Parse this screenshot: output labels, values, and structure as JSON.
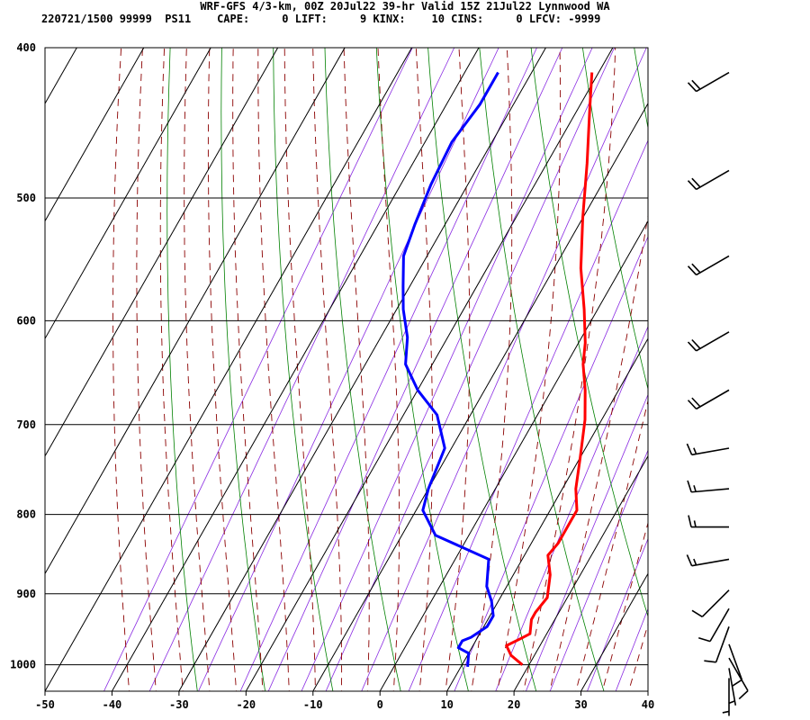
{
  "header": {
    "title": "WRF-GFS 4/3-km, 00Z 20Jul22 39-hr Valid 15Z 21Jul22 Lynnwood WA",
    "info": "220721/1500 99999  PS11    CAPE:     0 LIFT:     9 KINX:    10 CINS:     0 LFCV: -9999"
  },
  "colors": {
    "temperature": "#ff0000",
    "dewpoint": "#0000ff",
    "dry_adiabat": "#008000",
    "moist_adiabat": "#8b0000",
    "mixing_ratio": "#8a2be2",
    "grid": "#000000",
    "barb": "#000000"
  },
  "chart_data": {
    "type": "line",
    "chart_kind": "skew-T log-p sounding",
    "title": "WRF-GFS 4/3-km, 00Z 20Jul22 39-hr Valid 15Z 21Jul22 Lynnwood WA",
    "xlabel": "",
    "ylabel": "",
    "x_ticks": [
      -50,
      -40,
      -30,
      -20,
      -10,
      0,
      10,
      20,
      30,
      40
    ],
    "y_ticks": [
      400,
      500,
      600,
      700,
      800,
      900,
      1000
    ],
    "xlim": [
      -50,
      40
    ],
    "ylim": [
      1040,
      400
    ],
    "y_scale": "log",
    "grid": true,
    "series": [
      {
        "key": "temperature",
        "points": [
          [
            -21,
            415
          ],
          [
            -18,
            440
          ],
          [
            -14,
            475
          ],
          [
            -10,
            515
          ],
          [
            -6,
            555
          ],
          [
            -2,
            590
          ],
          [
            1,
            620
          ],
          [
            2.5,
            640
          ],
          [
            5,
            665
          ],
          [
            7.5,
            695
          ],
          [
            10,
            735
          ],
          [
            12,
            770
          ],
          [
            14,
            795
          ],
          [
            14,
            805
          ],
          [
            14,
            835
          ],
          [
            13.5,
            850
          ],
          [
            15.5,
            875
          ],
          [
            17,
            905
          ],
          [
            16.5,
            925
          ],
          [
            16.5,
            935
          ],
          [
            17.5,
            955
          ],
          [
            16.5,
            962
          ],
          [
            15,
            972
          ],
          [
            16.5,
            986
          ],
          [
            19,
            1000
          ]
        ]
      },
      {
        "key": "dewpoint",
        "points": [
          [
            -35,
            415
          ],
          [
            -35,
            435
          ],
          [
            -36,
            460
          ],
          [
            -35.5,
            490
          ],
          [
            -34.5,
            520
          ],
          [
            -33.5,
            545
          ],
          [
            -31,
            570
          ],
          [
            -29,
            590
          ],
          [
            -26,
            615
          ],
          [
            -24,
            640
          ],
          [
            -20,
            665
          ],
          [
            -15,
            690
          ],
          [
            -11,
            725
          ],
          [
            -10,
            770
          ],
          [
            -9,
            795
          ],
          [
            -5,
            825
          ],
          [
            5,
            855
          ],
          [
            7,
            890
          ],
          [
            9,
            910
          ],
          [
            10.5,
            930
          ],
          [
            10.5,
            945
          ],
          [
            9,
            960
          ],
          [
            8,
            965
          ],
          [
            8,
            975
          ],
          [
            10,
            983
          ],
          [
            11,
            1003
          ]
        ]
      }
    ],
    "wind_barbs": [
      {
        "p": 415,
        "dir": 240,
        "speed_kt": 20
      },
      {
        "p": 480,
        "dir": 240,
        "speed_kt": 20
      },
      {
        "p": 545,
        "dir": 240,
        "speed_kt": 20
      },
      {
        "p": 610,
        "dir": 240,
        "speed_kt": 20
      },
      {
        "p": 665,
        "dir": 240,
        "speed_kt": 20
      },
      {
        "p": 725,
        "dir": 260,
        "speed_kt": 15
      },
      {
        "p": 770,
        "dir": 265,
        "speed_kt": 15
      },
      {
        "p": 815,
        "dir": 270,
        "speed_kt": 15
      },
      {
        "p": 855,
        "dir": 260,
        "speed_kt": 15
      },
      {
        "p": 895,
        "dir": 225,
        "speed_kt": 10
      },
      {
        "p": 920,
        "dir": 210,
        "speed_kt": 10
      },
      {
        "p": 945,
        "dir": 200,
        "speed_kt": 10
      },
      {
        "p": 970,
        "dir": 160,
        "speed_kt": 10
      },
      {
        "p": 990,
        "dir": 150,
        "speed_kt": 10
      },
      {
        "p": 1005,
        "dir": 170,
        "speed_kt": 5
      },
      {
        "p": 1020,
        "dir": 180,
        "speed_kt": 5
      }
    ]
  }
}
